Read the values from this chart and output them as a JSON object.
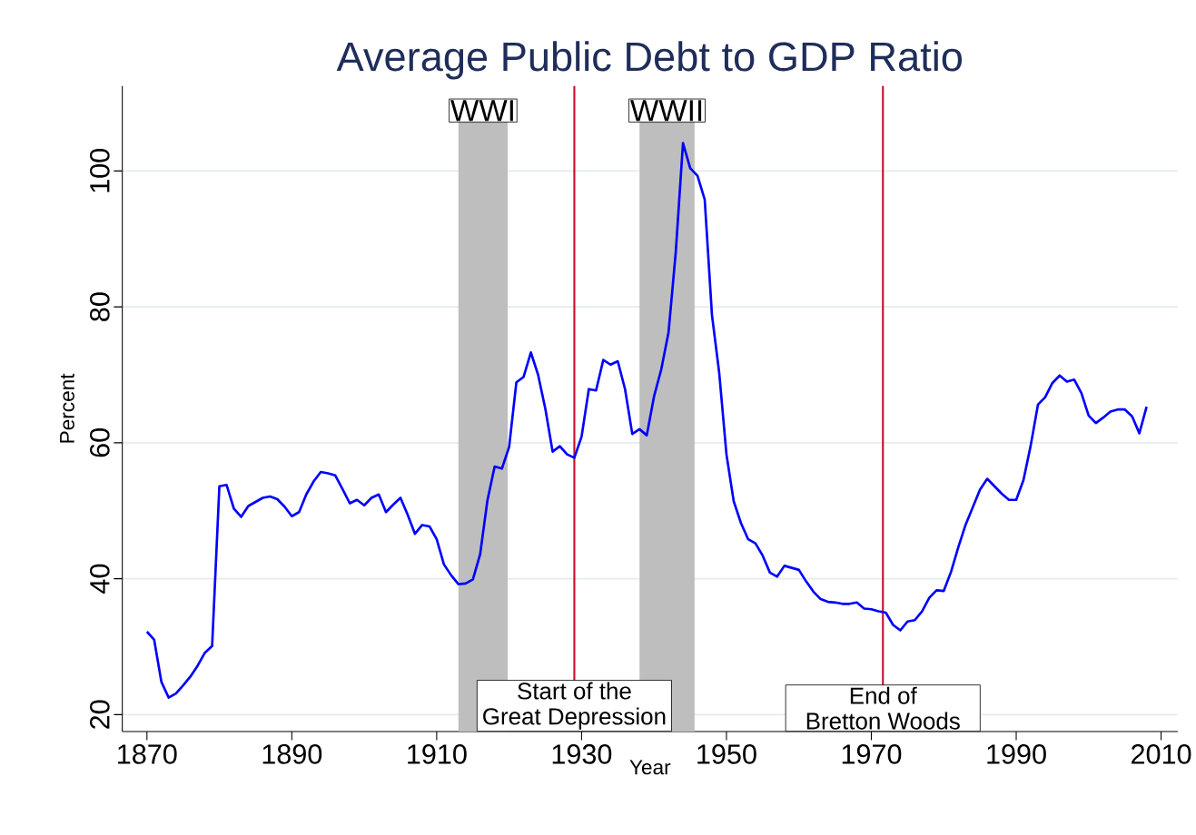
{
  "chart_data": {
    "type": "line",
    "title": "Average Public Debt to GDP Ratio",
    "xlabel": "Year",
    "ylabel": "Percent",
    "x": [
      1870,
      1871,
      1872,
      1873,
      1874,
      1875,
      1876,
      1877,
      1878,
      1879,
      1880,
      1881,
      1882,
      1883,
      1884,
      1885,
      1886,
      1887,
      1888,
      1889,
      1890,
      1891,
      1892,
      1893,
      1894,
      1895,
      1896,
      1897,
      1898,
      1899,
      1900,
      1901,
      1902,
      1903,
      1904,
      1905,
      1906,
      1907,
      1908,
      1909,
      1910,
      1911,
      1912,
      1913,
      1914,
      1915,
      1916,
      1917,
      1918,
      1919,
      1920,
      1921,
      1922,
      1923,
      1924,
      1925,
      1926,
      1927,
      1928,
      1929,
      1930,
      1931,
      1932,
      1933,
      1934,
      1935,
      1936,
      1937,
      1938,
      1939,
      1940,
      1941,
      1942,
      1943,
      1944,
      1945,
      1946,
      1947,
      1948,
      1949,
      1950,
      1951,
      1952,
      1953,
      1954,
      1955,
      1956,
      1957,
      1958,
      1959,
      1960,
      1961,
      1962,
      1963,
      1964,
      1965,
      1966,
      1967,
      1968,
      1969,
      1970,
      1971,
      1972,
      1973,
      1974,
      1975,
      1976,
      1977,
      1978,
      1979,
      1980,
      1981,
      1982,
      1983,
      1984,
      1985,
      1986,
      1987,
      1988,
      1989,
      1990,
      1991,
      1992,
      1993,
      1994,
      1995,
      1996,
      1997,
      1998,
      1999,
      2000,
      2001,
      2002,
      2003,
      2004,
      2005,
      2006,
      2007,
      2008
    ],
    "series": [
      {
        "color": "#0000ff",
        "values": [
          32.2,
          31.0,
          24.8,
          22.5,
          23.1,
          24.3,
          25.6,
          27.2,
          29.1,
          30.1,
          53.6,
          53.8,
          50.3,
          49.1,
          50.7,
          51.3,
          51.9,
          52.1,
          51.7,
          50.6,
          49.2,
          49.8,
          52.4,
          54.3,
          55.7,
          55.5,
          55.2,
          53.2,
          51.1,
          51.6,
          50.8,
          51.9,
          52.4,
          49.8,
          50.9,
          51.9,
          49.4,
          46.6,
          47.9,
          47.7,
          45.8,
          42.1,
          40.5,
          39.2,
          39.3,
          39.9,
          43.6,
          51.5,
          56.5,
          56.2,
          59.4,
          68.9,
          69.7,
          73.3,
          70.0,
          65.0,
          58.7,
          59.5,
          58.3,
          57.8,
          60.9,
          67.9,
          67.7,
          72.2,
          71.5,
          72.0,
          67.9,
          61.3,
          62.0,
          61.1,
          66.8,
          70.8,
          76.2,
          88.0,
          104.1,
          100.4,
          99.3,
          95.8,
          78.8,
          70.3,
          58.3,
          51.4,
          48.2,
          45.8,
          45.2,
          43.4,
          40.9,
          40.3,
          41.9,
          41.6,
          41.3,
          39.6,
          38.1,
          37.0,
          36.6,
          36.5,
          36.3,
          36.3,
          36.5,
          35.6,
          35.5,
          35.2,
          35.0,
          33.2,
          32.4,
          33.7,
          33.9,
          35.2,
          37.2,
          38.3,
          38.2,
          41.0,
          44.6,
          47.9,
          50.5,
          53.1,
          54.7,
          53.6,
          52.5,
          51.6,
          51.6,
          54.5,
          59.6,
          65.6,
          66.7,
          68.8,
          69.9,
          69.0,
          69.3,
          67.3,
          64.0,
          62.9,
          63.7,
          64.6,
          64.9,
          64.9,
          63.9,
          61.4,
          65.3
        ]
      }
    ],
    "xlim": [
      1866.6,
      2012.3
    ],
    "ylim": [
      17.5,
      112.5
    ],
    "xticks": [
      1870,
      1890,
      1910,
      1930,
      1950,
      1970,
      1990,
      2010
    ],
    "yticks": [
      20,
      40,
      60,
      80,
      100
    ],
    "grid": "y",
    "line_style": "solid",
    "bands": [
      {
        "axis": "x",
        "from": 1913,
        "to": 1919.8,
        "label": "WWI",
        "color": "#bebebe"
      },
      {
        "axis": "x",
        "from": 1938,
        "to": 1945.6,
        "label": "WWII",
        "color": "#bebebe"
      }
    ],
    "ref_lines": [
      {
        "axis": "x",
        "value": 1929,
        "label": "Start of the Great Depression",
        "color": "#c8102e"
      },
      {
        "axis": "x",
        "value": 1971.6,
        "label": "End of Bretton Woods",
        "color": "#c8102e"
      }
    ]
  }
}
